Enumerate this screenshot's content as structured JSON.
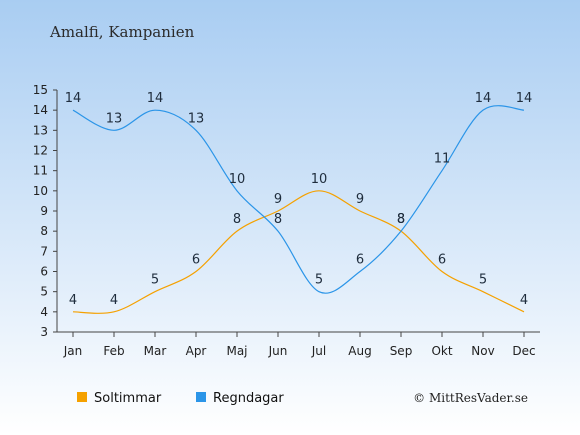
{
  "chart_data": {
    "type": "line",
    "title": "Amalfi, Kampanien",
    "categories": [
      "Jan",
      "Feb",
      "Mar",
      "Apr",
      "Maj",
      "Jun",
      "Jul",
      "Aug",
      "Sep",
      "Okt",
      "Nov",
      "Dec"
    ],
    "ylim": [
      3,
      15
    ],
    "yticks": [
      3,
      4,
      5,
      6,
      7,
      8,
      9,
      10,
      11,
      12,
      13,
      14,
      15
    ],
    "grid": false,
    "legend_position": "bottom-left",
    "series": [
      {
        "name": "Soltimmar",
        "color": "#f5a100",
        "values": [
          4,
          4,
          5,
          6,
          8,
          9,
          10,
          9,
          8,
          6,
          5,
          4
        ]
      },
      {
        "name": "Regndagar",
        "color": "#2b95e8",
        "values": [
          14,
          13,
          14,
          13,
          10,
          8,
          5,
          6,
          8,
          11,
          14,
          14
        ]
      }
    ]
  },
  "credit": "© MittResVader.se"
}
